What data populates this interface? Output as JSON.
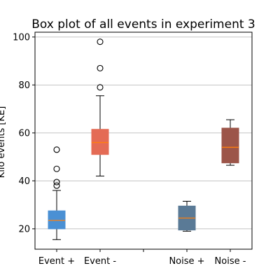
{
  "chart_data": {
    "type": "box",
    "title": "Box plot of all events in experiment 3",
    "xlabel": "",
    "ylabel": "Kilo events [KE]",
    "categories": [
      "Event +",
      "Event -",
      "",
      "Noise +",
      "Noise -"
    ],
    "yticks": [
      20,
      40,
      60,
      80,
      100
    ],
    "ylim": [
      11.5,
      102
    ],
    "grid": "horizontal",
    "boxes": [
      {
        "label": "Event +",
        "slot": 1,
        "color": "#4a90d4",
        "q1": 20.0,
        "median": 23.5,
        "q3": 27.5,
        "whisker_low": 15.5,
        "whisker_high": 36.0,
        "outliers": [
          38.0,
          39.5,
          45.0,
          53.0
        ]
      },
      {
        "label": "Event -",
        "slot": 2,
        "color": "#e46b55",
        "q1": 51.0,
        "median": 56.0,
        "q3": 61.5,
        "whisker_low": 42.0,
        "whisker_high": 75.5,
        "outliers": [
          79.0,
          87.0,
          98.0
        ]
      },
      {
        "label": "Noise +",
        "slot": 4,
        "color": "#5a7a96",
        "q1": 19.5,
        "median": 24.5,
        "q3": 29.5,
        "whisker_low": 19.0,
        "whisker_high": 31.5,
        "outliers": []
      },
      {
        "label": "Noise -",
        "slot": 5,
        "color": "#9c5549",
        "q1": 47.5,
        "median": 54.0,
        "q3": 62.0,
        "whisker_low": 46.5,
        "whisker_high": 65.5,
        "outliers": []
      }
    ],
    "median_color": "#ff7f0e"
  }
}
